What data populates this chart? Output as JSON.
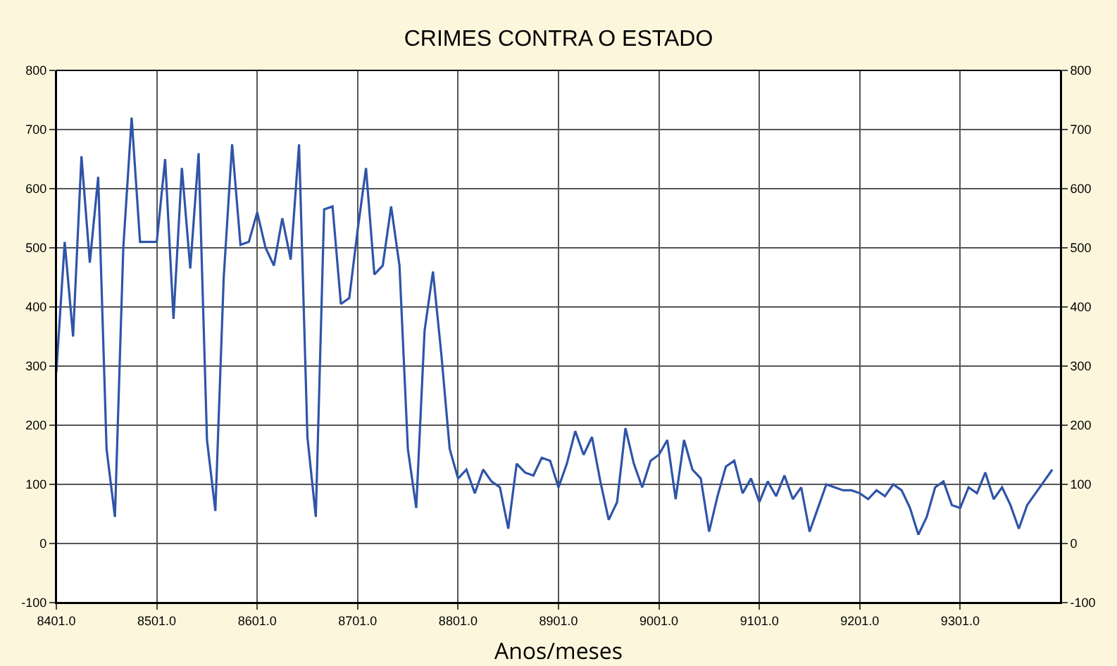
{
  "chart_data": {
    "type": "line",
    "title": "CRIMES CONTRA O ESTADO",
    "xlabel": "Anos/meses",
    "categories": [
      "8401.0",
      null,
      null,
      null,
      null,
      null,
      null,
      null,
      null,
      null,
      null,
      null,
      "8501.0",
      null,
      null,
      null,
      null,
      null,
      null,
      null,
      null,
      null,
      null,
      null,
      "8601.0",
      null,
      null,
      null,
      null,
      null,
      null,
      null,
      null,
      null,
      null,
      null,
      "8701.0",
      null,
      null,
      null,
      null,
      null,
      null,
      null,
      null,
      null,
      null,
      null,
      "8801.0",
      null,
      null,
      null,
      null,
      null,
      null,
      null,
      null,
      null,
      null,
      null,
      "8901.0",
      null,
      null,
      null,
      null,
      null,
      null,
      null,
      null,
      null,
      null,
      null,
      "9001.0",
      null,
      null,
      null,
      null,
      null,
      null,
      null,
      null,
      null,
      null,
      null,
      "9101.0",
      null,
      null,
      null,
      null,
      null,
      null,
      null,
      null,
      null,
      null,
      null,
      "9201.0",
      null,
      null,
      null,
      null,
      null,
      null,
      null,
      null,
      null,
      null,
      null,
      "9301.0",
      null,
      null,
      null,
      null,
      null,
      null,
      null,
      null,
      null,
      null,
      null
    ],
    "series": [
      {
        "color": "#2f54a8",
        "values": [
          290,
          510,
          350,
          655,
          475,
          620,
          160,
          45,
          500,
          720,
          510,
          510,
          510,
          650,
          380,
          635,
          465,
          660,
          175,
          55,
          450,
          675,
          505,
          510,
          560,
          500,
          470,
          550,
          480,
          675,
          180,
          45,
          565,
          570,
          405,
          415,
          530,
          635,
          455,
          470,
          570,
          470,
          160,
          60,
          360,
          460,
          320,
          160,
          110,
          125,
          85,
          125,
          105,
          95,
          25,
          135,
          120,
          115,
          145,
          140,
          95,
          135,
          190,
          150,
          180,
          105,
          40,
          70,
          195,
          135,
          95,
          140,
          150,
          175,
          75,
          175,
          125,
          110,
          20,
          80,
          130,
          140,
          85,
          110,
          70,
          105,
          80,
          115,
          75,
          95,
          20,
          60,
          100,
          95,
          90,
          90,
          85,
          75,
          90,
          80,
          100,
          90,
          60,
          15,
          45,
          95,
          105,
          65,
          60,
          95,
          85,
          120,
          75,
          95,
          65,
          25,
          65,
          85,
          105,
          125
        ]
      }
    ],
    "ylim": [
      -100,
      800
    ],
    "yticks": [
      -100,
      0,
      100,
      200,
      300,
      400,
      500,
      600,
      700,
      800
    ],
    "y2lim": [
      -100,
      800
    ],
    "y2ticks": [
      -100,
      0,
      100,
      200,
      300,
      400,
      500,
      600,
      700,
      800
    ],
    "grid": true,
    "marker": "none",
    "line_style": "solid"
  }
}
